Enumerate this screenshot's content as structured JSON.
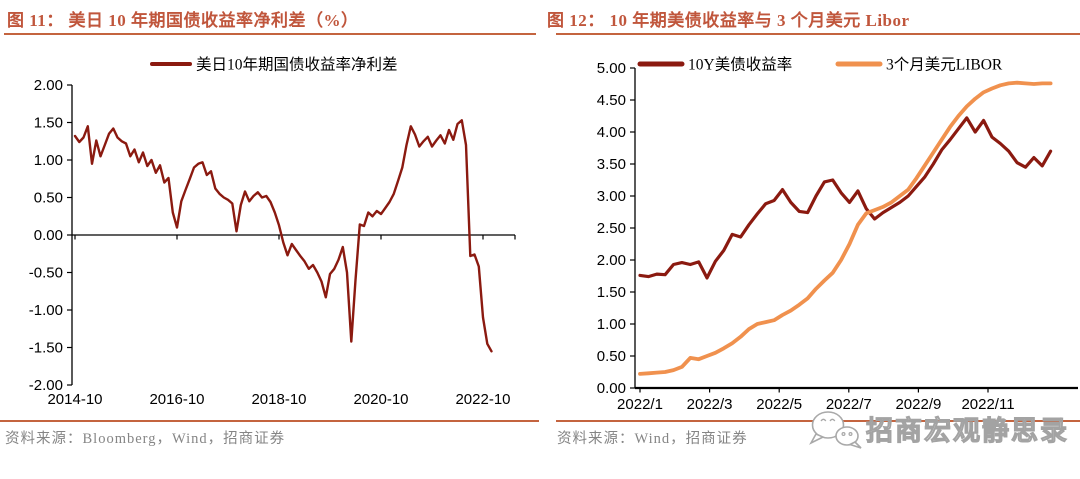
{
  "colors": {
    "title": "#c0563c",
    "rule": "#c4643f",
    "dark_red_series": "#8b1a10",
    "orange_series": "#f0914e",
    "axis": "#000000",
    "source_text": "#858585",
    "watermark_gray": "#a3a3a3"
  },
  "figure11": {
    "title": "图 11：  美日 10 年期国债收益率净利差（%）",
    "source": "资料来源：Bloomberg，Wind，招商证券"
  },
  "figure12": {
    "title": "图 12：  10 年期美债收益率与 3 个月美元 Libor",
    "source": "资料来源：Wind，招商证券"
  },
  "watermark": {
    "icon": "wechat-icon",
    "label": "招商宏观静思录"
  },
  "chart_data": [
    {
      "type": "line",
      "title": "美日 10 年期国债收益率净利差（%）",
      "xlabel": "",
      "ylabel": "",
      "ylim": [
        -2,
        2
      ],
      "grid": false,
      "legend_position": "top-center",
      "x_axis_crosses_at": 0,
      "x_start": "2014-10",
      "months_per_point": 1,
      "x_tick_labels": [
        "2014-10",
        "2016-10",
        "2018-10",
        "2020-10",
        "2022-10"
      ],
      "x_tick_months": [
        0,
        24,
        48,
        72,
        96
      ],
      "y_ticks": [
        2,
        1.5,
        1,
        0.5,
        0,
        -0.5,
        -1,
        -1.5,
        -2
      ],
      "y_tick_labels": [
        "2.00",
        "1.50",
        "1.00",
        "0.50",
        "0.00",
        "-0.50",
        "-1.00",
        "-1.50",
        "-2.00"
      ],
      "series": [
        {
          "name": "美日10年期国债收益率净利差",
          "color": "#8b1a10",
          "values": [
            1.32,
            1.24,
            1.3,
            1.45,
            0.95,
            1.26,
            1.05,
            1.2,
            1.35,
            1.42,
            1.3,
            1.25,
            1.22,
            1.05,
            1.14,
            0.97,
            1.1,
            0.92,
            1.0,
            0.83,
            0.93,
            0.7,
            0.76,
            0.3,
            0.1,
            0.45,
            0.6,
            0.75,
            0.9,
            0.95,
            0.97,
            0.8,
            0.85,
            0.62,
            0.55,
            0.5,
            0.47,
            0.42,
            0.05,
            0.4,
            0.58,
            0.45,
            0.52,
            0.57,
            0.5,
            0.52,
            0.44,
            0.3,
            0.13,
            -0.1,
            -0.27,
            -0.12,
            -0.2,
            -0.28,
            -0.35,
            -0.45,
            -0.4,
            -0.5,
            -0.62,
            -0.83,
            -0.52,
            -0.45,
            -0.33,
            -0.16,
            -0.5,
            -1.42,
            -0.6,
            0.14,
            0.12,
            0.3,
            0.25,
            0.32,
            0.28,
            0.36,
            0.44,
            0.55,
            0.72,
            0.9,
            1.2,
            1.45,
            1.34,
            1.18,
            1.25,
            1.31,
            1.18,
            1.26,
            1.33,
            1.22,
            1.4,
            1.27,
            1.48,
            1.53,
            1.2,
            -0.28,
            -0.26,
            -0.42,
            -1.1,
            -1.45,
            -1.55
          ]
        }
      ]
    },
    {
      "type": "line",
      "title": "10 年期美债收益率与 3 个月美元 Libor",
      "xlabel": "",
      "ylabel": "",
      "ylim": [
        0,
        5
      ],
      "grid": false,
      "legend_position": "top-center",
      "x_axis_crosses_at": 0,
      "x_start": "2022/1",
      "months_per_point": 0.2408,
      "x_tick_labels": [
        "2022/1",
        "2022/3",
        "2022/5",
        "2022/7",
        "2022/9",
        "2022/11"
      ],
      "x_tick_months": [
        0,
        2,
        4,
        6,
        8,
        10
      ],
      "y_ticks": [
        5,
        4.5,
        4,
        3.5,
        3,
        2.5,
        2,
        1.5,
        1,
        0.5,
        0
      ],
      "y_tick_labels": [
        "5.00",
        "4.50",
        "4.00",
        "3.50",
        "3.00",
        "2.50",
        "2.00",
        "1.50",
        "1.00",
        "0.50",
        "0.00"
      ],
      "series": [
        {
          "name": "10Y美债收益率",
          "color": "#8b1a10",
          "values": [
            1.76,
            1.74,
            1.78,
            1.77,
            1.93,
            1.96,
            1.93,
            1.97,
            1.72,
            1.98,
            2.15,
            2.4,
            2.36,
            2.55,
            2.72,
            2.88,
            2.93,
            3.1,
            2.9,
            2.76,
            2.74,
            3.0,
            3.22,
            3.25,
            3.05,
            2.9,
            3.08,
            2.8,
            2.64,
            2.74,
            2.82,
            2.9,
            3.0,
            3.15,
            3.3,
            3.5,
            3.72,
            3.88,
            4.05,
            4.22,
            4.0,
            4.18,
            3.92,
            3.82,
            3.7,
            3.52,
            3.45,
            3.6,
            3.47,
            3.7
          ]
        },
        {
          "name": "3个月美元LIBOR",
          "color": "#f0914e",
          "values": [
            0.22,
            0.23,
            0.24,
            0.25,
            0.28,
            0.33,
            0.47,
            0.45,
            0.5,
            0.55,
            0.62,
            0.7,
            0.8,
            0.92,
            1.0,
            1.03,
            1.06,
            1.14,
            1.21,
            1.3,
            1.4,
            1.55,
            1.68,
            1.8,
            2.0,
            2.25,
            2.55,
            2.73,
            2.78,
            2.83,
            2.9,
            3.0,
            3.1,
            3.28,
            3.48,
            3.68,
            3.88,
            4.08,
            4.25,
            4.4,
            4.52,
            4.62,
            4.68,
            4.73,
            4.76,
            4.77,
            4.76,
            4.75,
            4.76,
            4.76
          ]
        }
      ]
    }
  ]
}
